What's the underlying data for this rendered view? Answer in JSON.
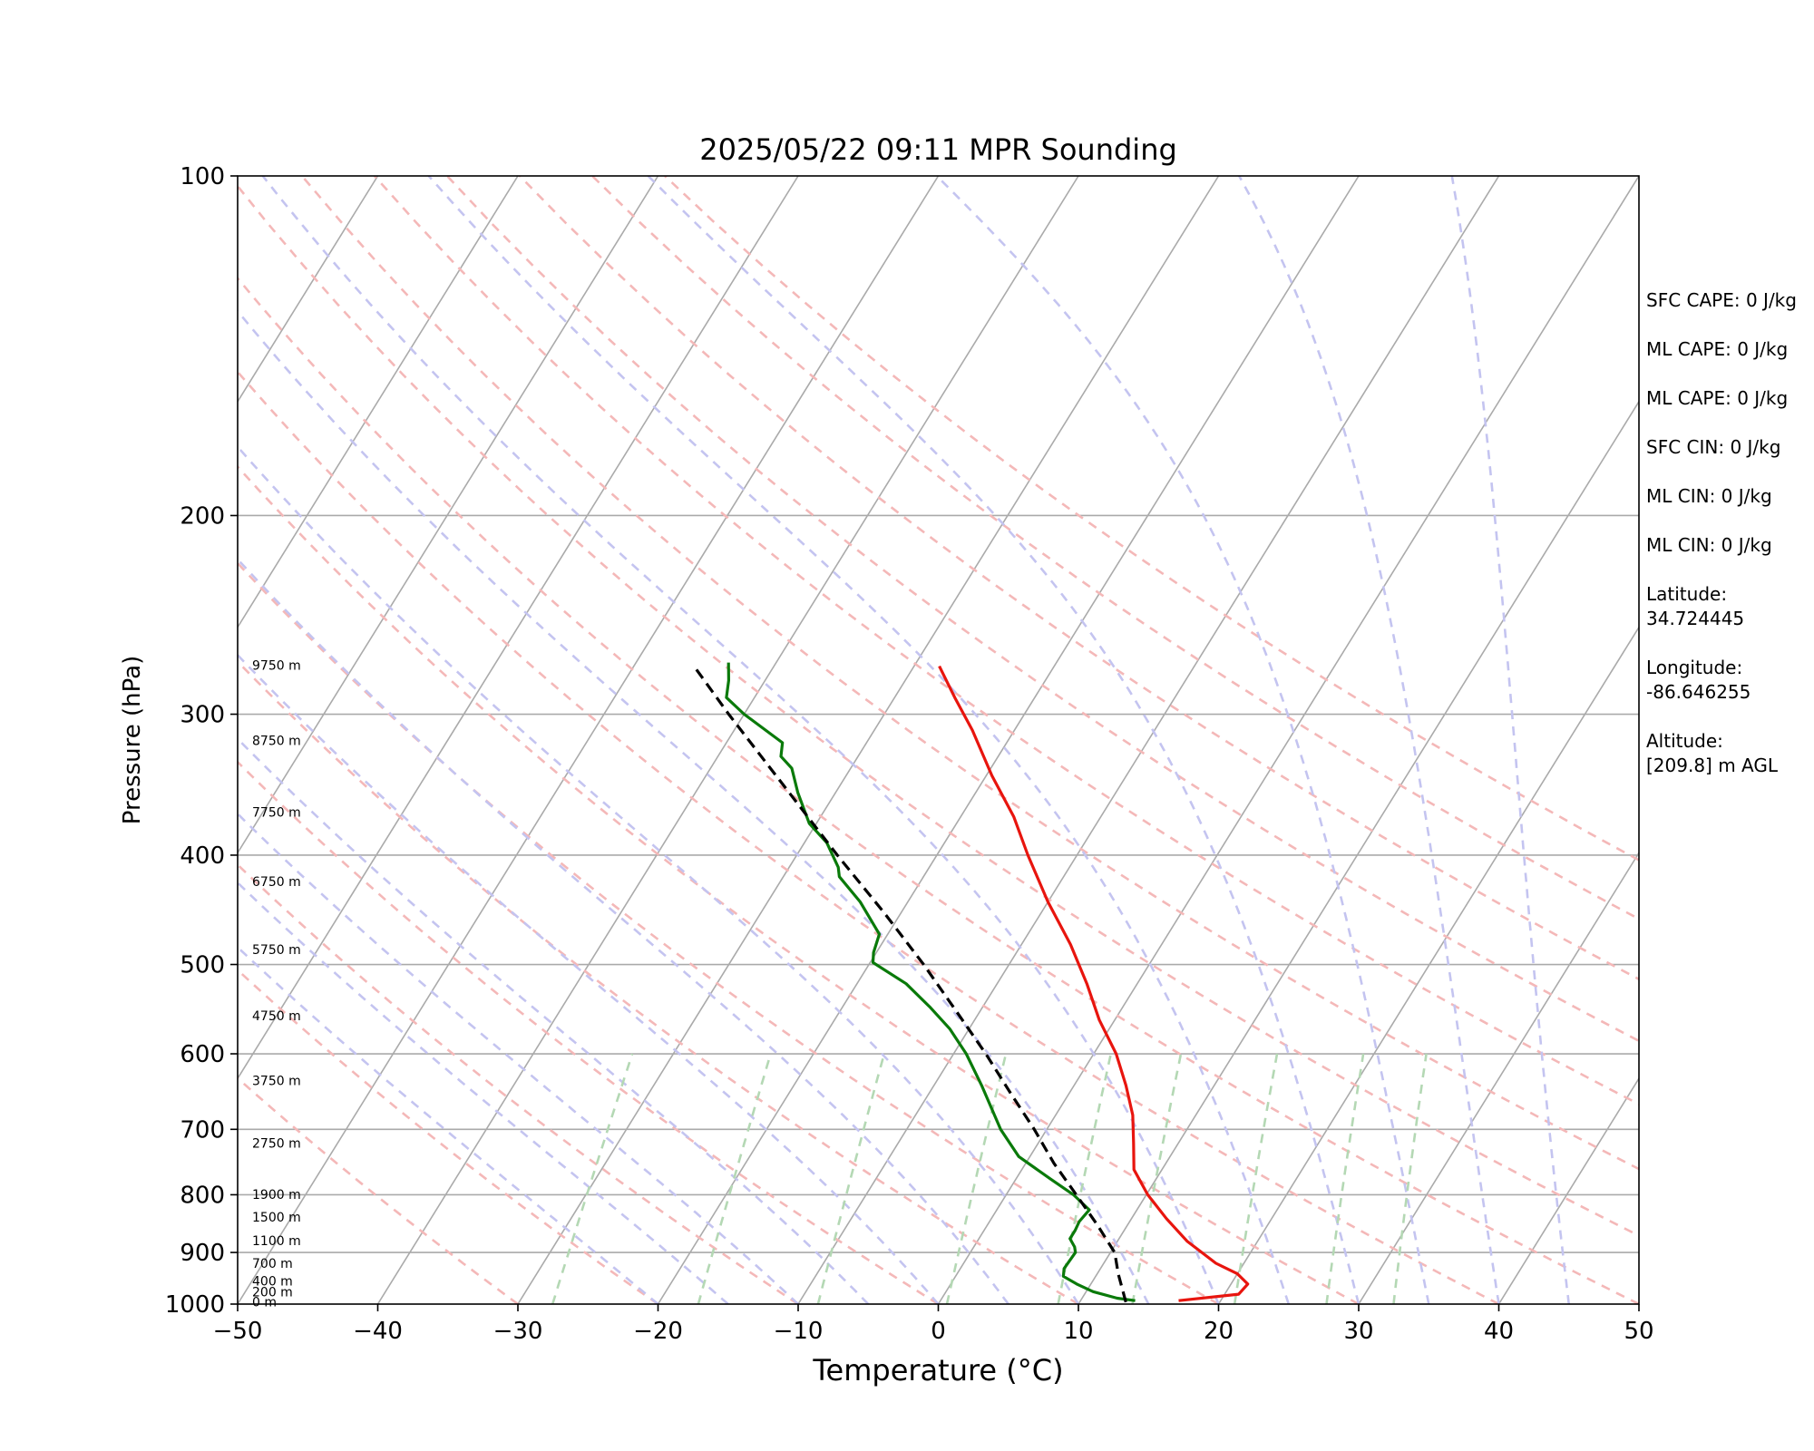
{
  "chart_data": {
    "type": "line",
    "title": "2025/05/22 09:11 MPR Sounding",
    "xlabel": "Temperature (°C)",
    "ylabel": "Pressure (hPa)",
    "xlim": [
      -50,
      50
    ],
    "ylim": [
      1000,
      100
    ],
    "y_scale": "log",
    "skew": "skew-T log-p",
    "grid": true,
    "xticks": [
      "−50",
      "−40",
      "−30",
      "−20",
      "−10",
      "0",
      "10",
      "20",
      "30",
      "40",
      "50"
    ],
    "yticks": [
      "100",
      "200",
      "300",
      "400",
      "500",
      "600",
      "700",
      "800",
      "900",
      "1000"
    ],
    "height_labels": [
      {
        "p": 997,
        "label": "0 m"
      },
      {
        "p": 977,
        "label": "200 m"
      },
      {
        "p": 956,
        "label": "400 m"
      },
      {
        "p": 922,
        "label": "700 m"
      },
      {
        "p": 880,
        "label": "1100 m"
      },
      {
        "p": 839,
        "label": "1500 m"
      },
      {
        "p": 801,
        "label": "1900 m"
      },
      {
        "p": 721,
        "label": "2750 m"
      },
      {
        "p": 635,
        "label": "3750 m"
      },
      {
        "p": 556,
        "label": "4750 m"
      },
      {
        "p": 486,
        "label": "5750 m"
      },
      {
        "p": 423,
        "label": "6750 m"
      },
      {
        "p": 367,
        "label": "7750 m"
      },
      {
        "p": 317,
        "label": "8750 m"
      },
      {
        "p": 272,
        "label": "9750 m"
      }
    ],
    "series": [
      {
        "name": "Temperature",
        "color": "#e8150e",
        "style": "solid",
        "points": [
          [
            993,
            17.0
          ],
          [
            980,
            21.0
          ],
          [
            960,
            21.2
          ],
          [
            940,
            20.0
          ],
          [
            920,
            18.0
          ],
          [
            880,
            15.0
          ],
          [
            840,
            12.5
          ],
          [
            800,
            10.1
          ],
          [
            760,
            8.0
          ],
          [
            720,
            6.8
          ],
          [
            680,
            5.5
          ],
          [
            640,
            3.7
          ],
          [
            600,
            1.6
          ],
          [
            560,
            -1.1
          ],
          [
            520,
            -3.6
          ],
          [
            480,
            -6.5
          ],
          [
            440,
            -10.0
          ],
          [
            400,
            -13.5
          ],
          [
            370,
            -16.2
          ],
          [
            340,
            -19.6
          ],
          [
            310,
            -23.0
          ],
          [
            290,
            -25.7
          ],
          [
            272,
            -28.2
          ]
        ]
      },
      {
        "name": "Dewpoint",
        "color": "#0a7a0a",
        "style": "solid",
        "points": [
          [
            993,
            13.9
          ],
          [
            988,
            12.5
          ],
          [
            975,
            10.5
          ],
          [
            960,
            9.0
          ],
          [
            945,
            7.7
          ],
          [
            930,
            7.4
          ],
          [
            900,
            7.5
          ],
          [
            890,
            7.2
          ],
          [
            875,
            6.5
          ],
          [
            860,
            6.5
          ],
          [
            845,
            6.4
          ],
          [
            825,
            6.6
          ],
          [
            800,
            4.8
          ],
          [
            775,
            2.5
          ],
          [
            740,
            -0.8
          ],
          [
            700,
            -3.3
          ],
          [
            640,
            -6.6
          ],
          [
            600,
            -9.1
          ],
          [
            570,
            -11.4
          ],
          [
            545,
            -13.8
          ],
          [
            520,
            -16.5
          ],
          [
            498,
            -19.8
          ],
          [
            488,
            -20.2
          ],
          [
            470,
            -20.6
          ],
          [
            440,
            -23.4
          ],
          [
            418,
            -26.0
          ],
          [
            410,
            -26.5
          ],
          [
            390,
            -28.4
          ],
          [
            375,
            -30.5
          ],
          [
            352,
            -32.7
          ],
          [
            335,
            -34.2
          ],
          [
            327,
            -35.5
          ],
          [
            318,
            -36.0
          ],
          [
            300,
            -40.0
          ],
          [
            290,
            -42.0
          ],
          [
            280,
            -42.6
          ],
          [
            270,
            -43.4
          ]
        ]
      },
      {
        "name": "Parcel",
        "color": "#000000",
        "style": "dashed",
        "points": [
          [
            996,
            13.3
          ],
          [
            940,
            11.5
          ],
          [
            900,
            10.3
          ],
          [
            850,
            7.8
          ],
          [
            800,
            5.0
          ],
          [
            750,
            2.0
          ],
          [
            700,
            -0.9
          ],
          [
            650,
            -4.2
          ],
          [
            600,
            -7.7
          ],
          [
            550,
            -11.7
          ],
          [
            500,
            -16.1
          ],
          [
            450,
            -21.2
          ],
          [
            400,
            -27.1
          ],
          [
            350,
            -33.6
          ],
          [
            300,
            -41.1
          ],
          [
            272,
            -45.7
          ]
        ]
      }
    ],
    "background_lines": {
      "isotherms_color": "#aaaaaa",
      "dry_adiabats_color": "#f4b8b8",
      "moist_adiabats_color": "#c4c4f0",
      "mixing_ratio_color": "#b4d8b4"
    }
  },
  "indices": {
    "sfc_cape": "SFC CAPE: 0 J/kg",
    "ml_cape_1": "ML CAPE: 0 J/kg",
    "ml_cape_2": "ML CAPE: 0 J/kg",
    "sfc_cin": "SFC CIN: 0 J/kg",
    "ml_cin_1": "ML CIN: 0 J/kg",
    "ml_cin_2": "ML CIN: 0 J/kg",
    "latitude": "Latitude:\n34.724445",
    "longitude": "Longitude:\n-86.646255",
    "altitude": "Altitude:\n[209.8] m AGL"
  }
}
